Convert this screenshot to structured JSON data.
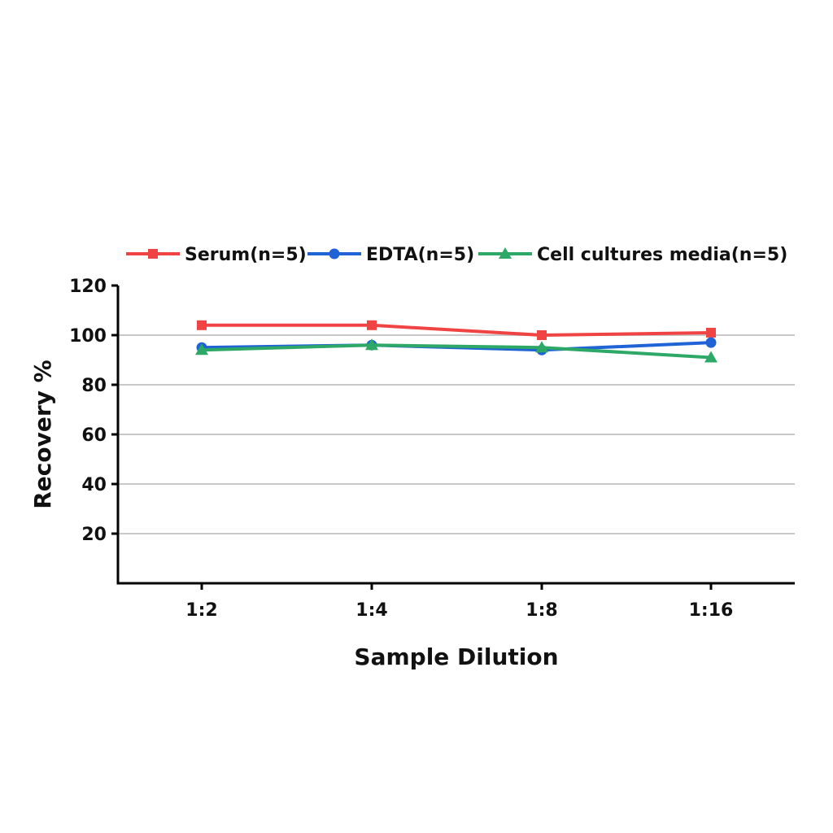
{
  "chart_data": {
    "type": "line",
    "title": "",
    "xlabel": "Sample Dilution",
    "ylabel": "Recovery %",
    "categories": [
      "1:2",
      "1:4",
      "1:8",
      "1:16"
    ],
    "ylim": [
      0,
      120
    ],
    "yticks": [
      20,
      40,
      60,
      80,
      100,
      120
    ],
    "grid": true,
    "legend_position": "top",
    "series": [
      {
        "name": "Serum(n=5)",
        "color": "#f04343",
        "marker": "square",
        "values": [
          104,
          104,
          100,
          101
        ]
      },
      {
        "name": "EDTA(n=5)",
        "color": "#1f63d6",
        "marker": "circle",
        "values": [
          95,
          96,
          94,
          97
        ]
      },
      {
        "name": "Cell cultures media(n=5)",
        "color": "#2ea866",
        "marker": "triangle",
        "values": [
          94,
          96,
          95,
          91
        ]
      }
    ]
  }
}
